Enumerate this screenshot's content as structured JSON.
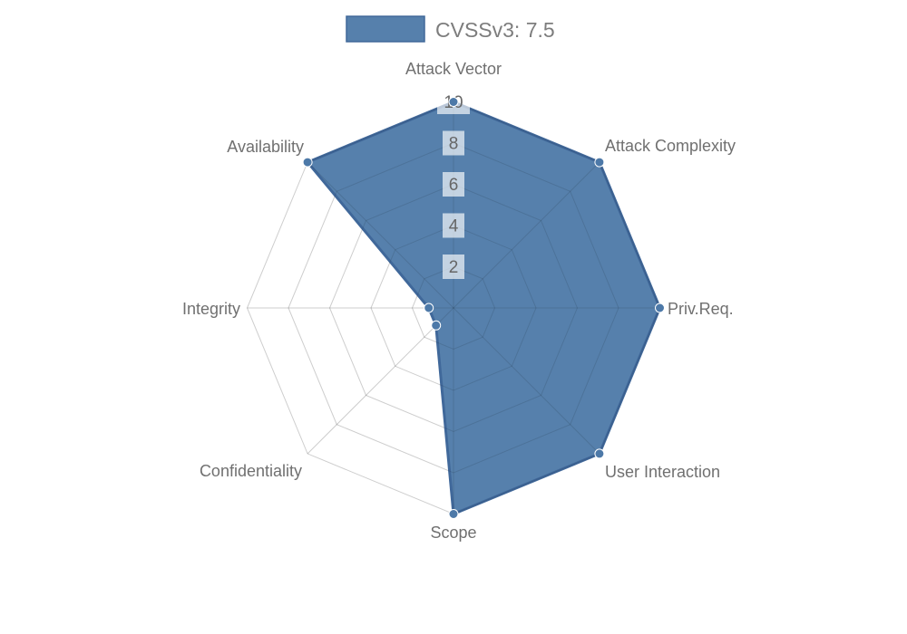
{
  "page": {
    "background": "#ffffff"
  },
  "legend": {
    "position": "top"
  },
  "chart_data": {
    "type": "radar",
    "title": "",
    "categories": [
      "Attack Vector",
      "Attack Complexity",
      "Priv.Req.",
      "User Interaction",
      "Scope",
      "Confidentiality",
      "Integrity",
      "Availability"
    ],
    "series": [
      {
        "name": "CVSSv3: 7.5",
        "values": [
          10,
          10,
          10,
          10,
          10,
          1.2,
          1.2,
          10
        ],
        "color": "#4d79a8",
        "border_color": "#40689a",
        "point_color": "#4d79a8",
        "point_border_color": "#ffffff"
      }
    ],
    "ticks": [
      "2",
      "4",
      "6",
      "8",
      "10"
    ],
    "tick_values": [
      2,
      4,
      6,
      8,
      10
    ],
    "rlim": [
      0,
      10
    ],
    "grid": true,
    "legend_position": "top"
  },
  "styles": {
    "grid_color": "rgba(0,0,0,0.10)",
    "angle_line_color": "rgba(0,0,0,0.10)",
    "tick_text_color": "#666666",
    "tick_backdrop_color": "rgba(255,255,255,0.65)",
    "axis_label_color": "#707070",
    "legend_text_color": "#7d7d7d",
    "fill_opacity": 0.95
  }
}
